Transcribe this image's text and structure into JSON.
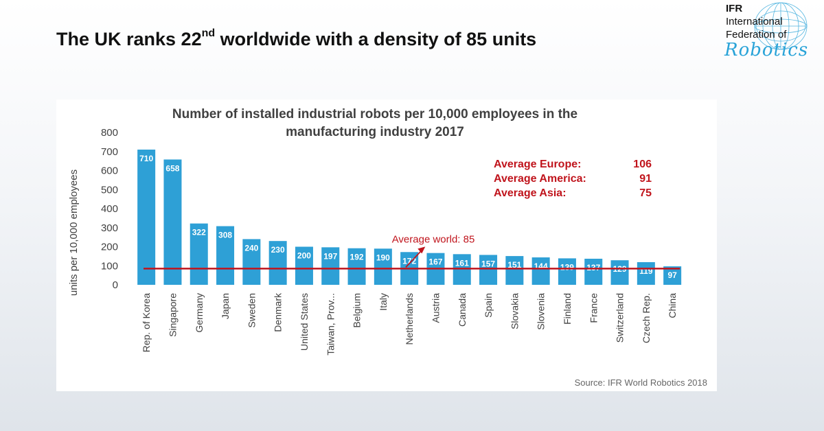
{
  "slide": {
    "title_main": "The UK ranks 22",
    "title_sup": "nd",
    "title_rest": " worldwide with a density of 85 units"
  },
  "logo": {
    "abbr": "IFR",
    "line1": "International",
    "line2": "Federation of",
    "script": "Robotics"
  },
  "averages": [
    {
      "label": "Average Europe:",
      "value": "106"
    },
    {
      "label": "Average America:",
      "value": "91"
    },
    {
      "label": "Average Asia:",
      "value": "75"
    }
  ],
  "source": "Source: IFR World Robotics 2018",
  "chart_data": {
    "type": "bar",
    "title": "Number of installed industrial robots per 10,000 employees in the manufacturing industry 2017",
    "title_lines": [
      "Number of installed industrial robots per 10,000 employees in the",
      "manufacturing industry 2017"
    ],
    "ylabel": "units per 10,000 employees",
    "xlabel": "",
    "ylim": [
      0,
      800
    ],
    "yticks": [
      0,
      100,
      200,
      300,
      400,
      500,
      600,
      700,
      800
    ],
    "grid": false,
    "categories": [
      "Rep. of Korea",
      "Singapore",
      "Germany",
      "Japan",
      "Sweden",
      "Denmark",
      "United States",
      "Taiwan, Prov...",
      "Belgium",
      "Italy",
      "Netherlands",
      "Austria",
      "Canada",
      "Spain",
      "Slovakia",
      "Slovenia",
      "Finland",
      "France",
      "Switzerland",
      "Czech Rep.",
      "China"
    ],
    "values": [
      710,
      658,
      322,
      308,
      240,
      230,
      200,
      197,
      192,
      190,
      172,
      167,
      161,
      157,
      151,
      144,
      139,
      137,
      129,
      119,
      97
    ],
    "reference_line": {
      "label": "Average world: 85",
      "value": 85
    },
    "colors": {
      "bar": "#2ea0d6",
      "bar_label": "#ffffff",
      "reference": "#c0141c",
      "axis_text": "#404040"
    }
  }
}
